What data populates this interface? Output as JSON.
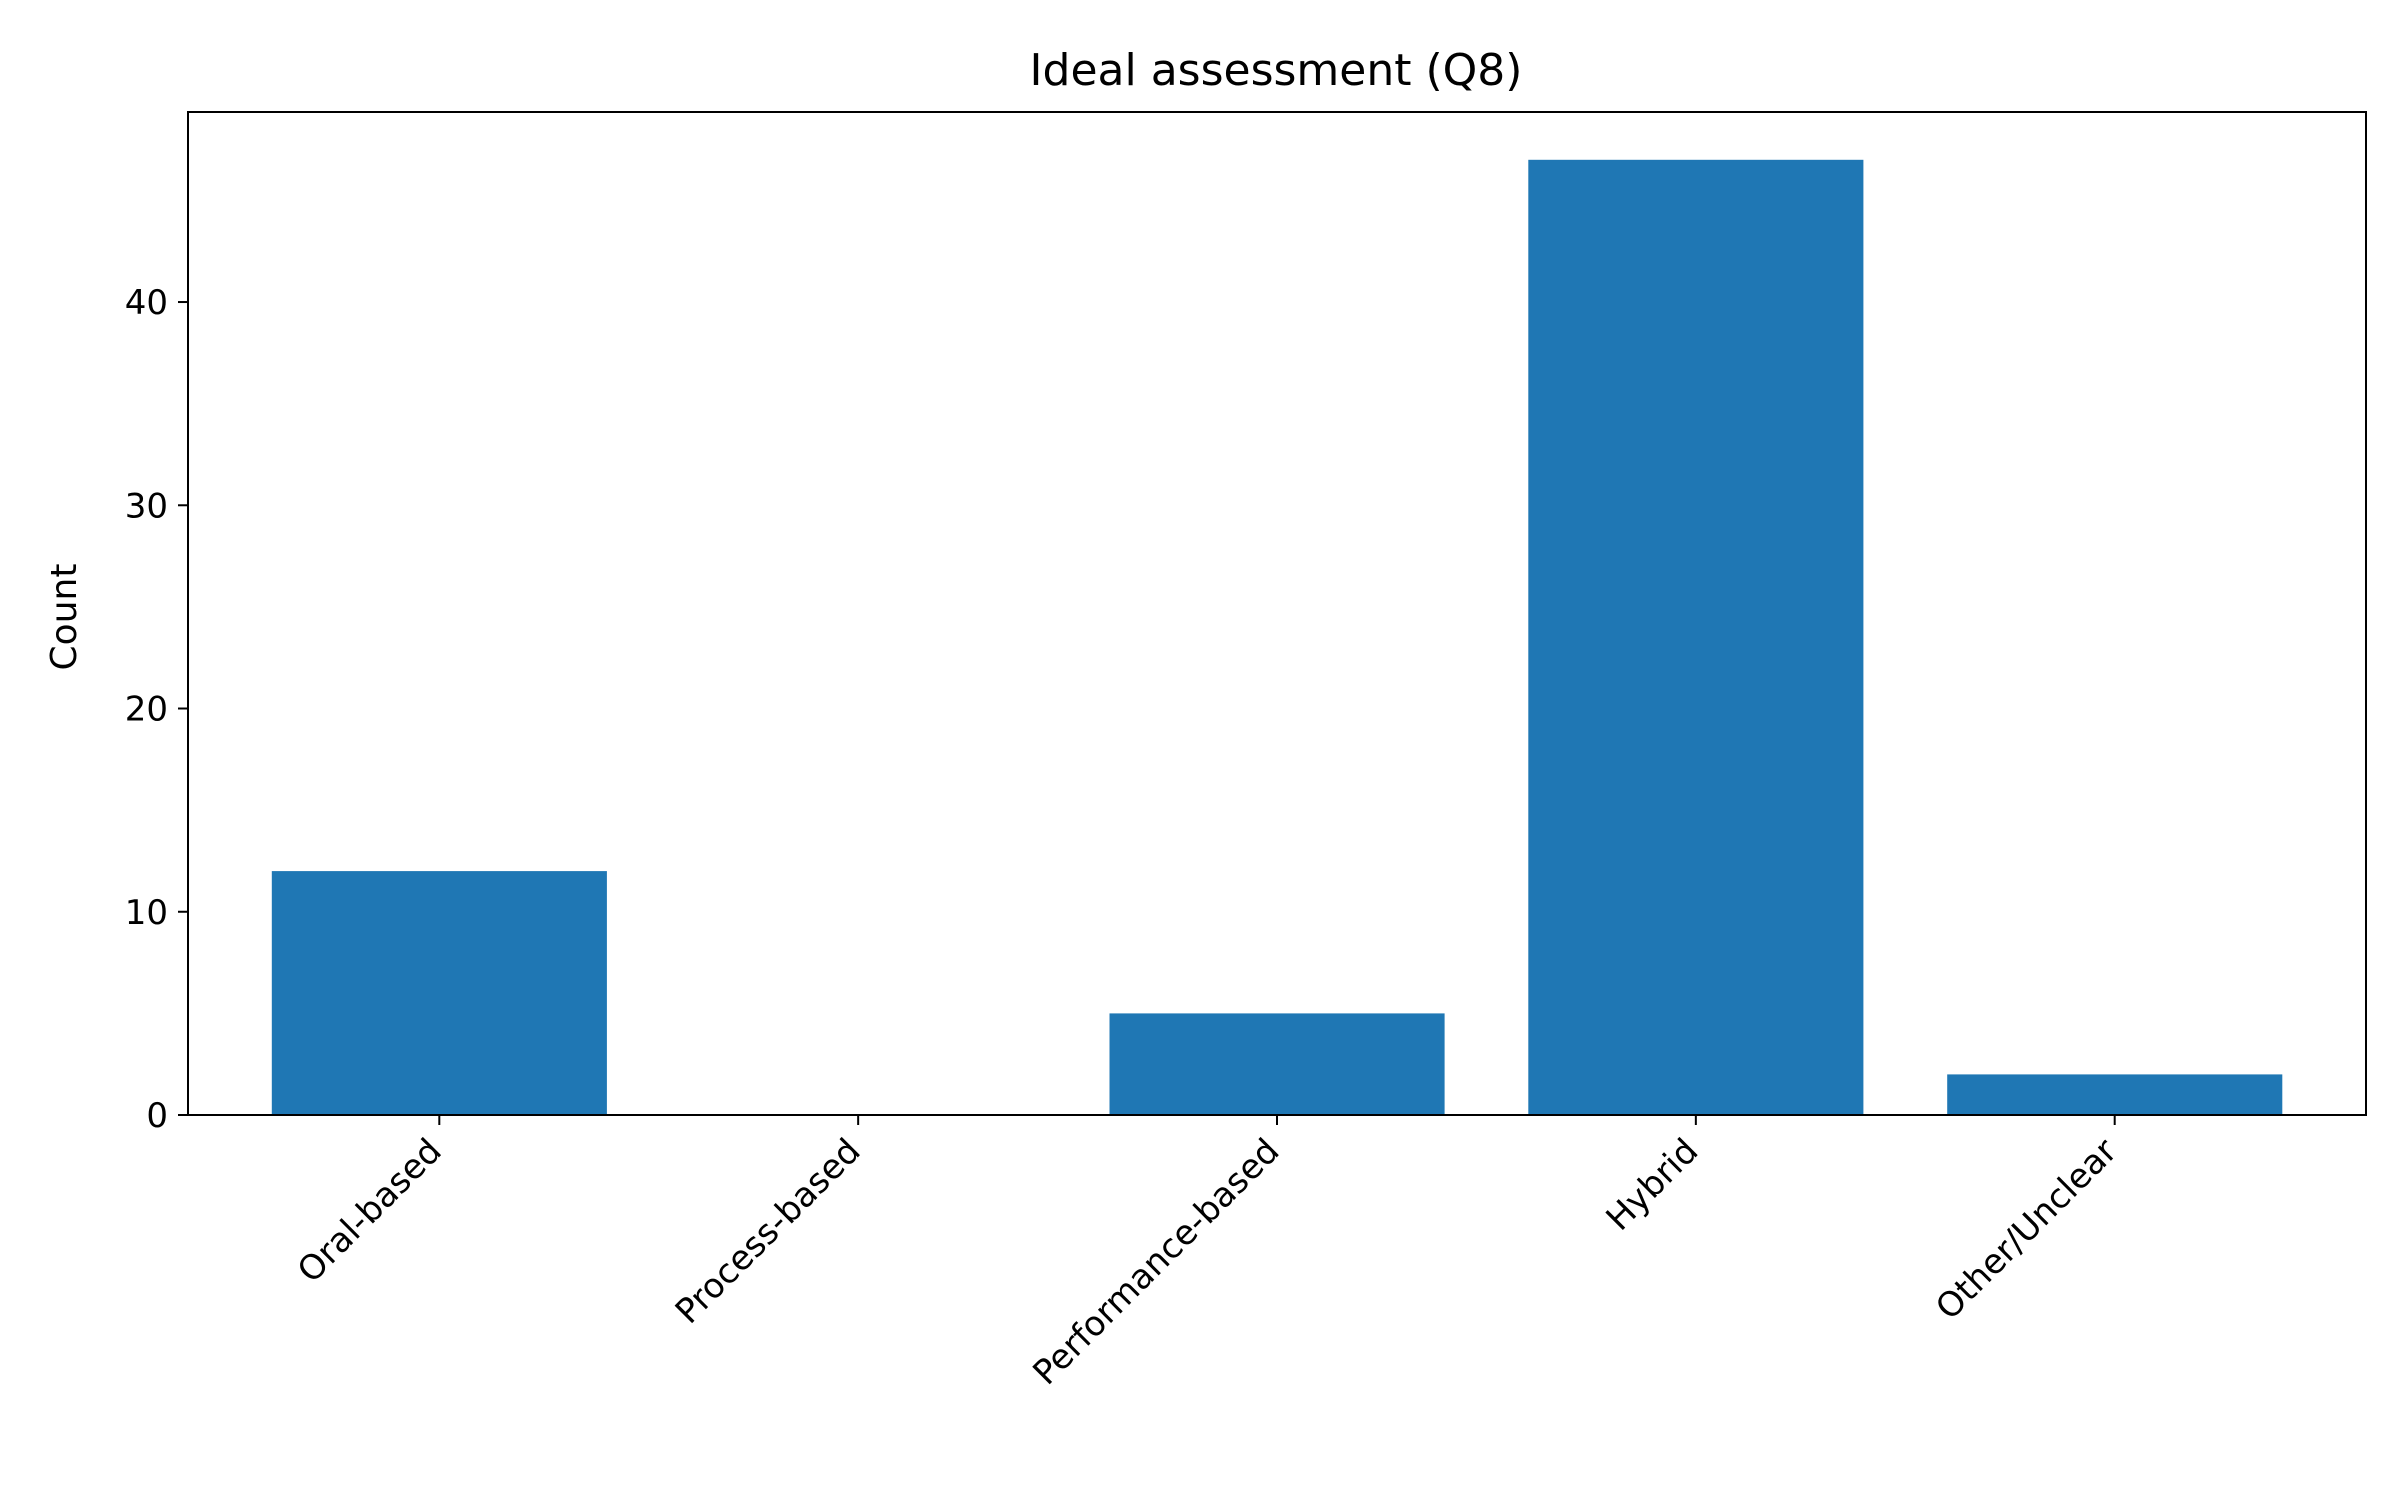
{
  "chart_data": {
    "type": "bar",
    "title": "Ideal assessment (Q8)",
    "xlabel": "",
    "ylabel": "Count",
    "categories": [
      "Oral-based",
      "Process-based",
      "Performance-based",
      "Hybrid",
      "Other/Unclear"
    ],
    "values": [
      12,
      0,
      5,
      47,
      2
    ],
    "ylim": [
      0,
      49.35
    ],
    "yticks": [
      "0",
      "10",
      "20",
      "30",
      "40"
    ],
    "bar_color": "#1f77b4",
    "grid": false
  }
}
